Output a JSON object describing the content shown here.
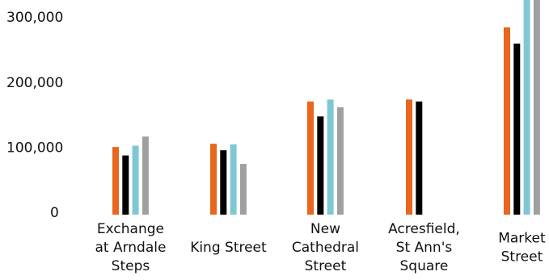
{
  "chart_data": {
    "type": "bar",
    "categories": [
      [
        "Exchange",
        "at Arndale",
        "Steps"
      ],
      [
        "King Street"
      ],
      [
        "New",
        "Cathedral",
        "Street"
      ],
      [
        "Acresfield,",
        "St Ann's",
        "Square"
      ],
      [
        "Market",
        "Street"
      ]
    ],
    "series": [
      {
        "color": "#e8661e",
        "values": [
          104000,
          109000,
          174000,
          177000,
          288000
        ]
      },
      {
        "color": "#000000",
        "values": [
          91000,
          99000,
          151000,
          174000,
          263000
        ]
      },
      {
        "color": "#7ec8d3",
        "values": [
          106000,
          108000,
          177000,
          null,
          340000
        ]
      },
      {
        "color": "#a0a0a0",
        "values": [
          120000,
          78000,
          165000,
          null,
          345000
        ]
      }
    ],
    "yticks": [
      "0",
      "100,000",
      "200,000",
      "300,000"
    ],
    "ytick_values": [
      0,
      100000,
      200000,
      300000
    ],
    "ylim": [
      0,
      300000
    ],
    "title": "",
    "xlabel": "",
    "ylabel": "",
    "grid": false,
    "legend": "none"
  }
}
